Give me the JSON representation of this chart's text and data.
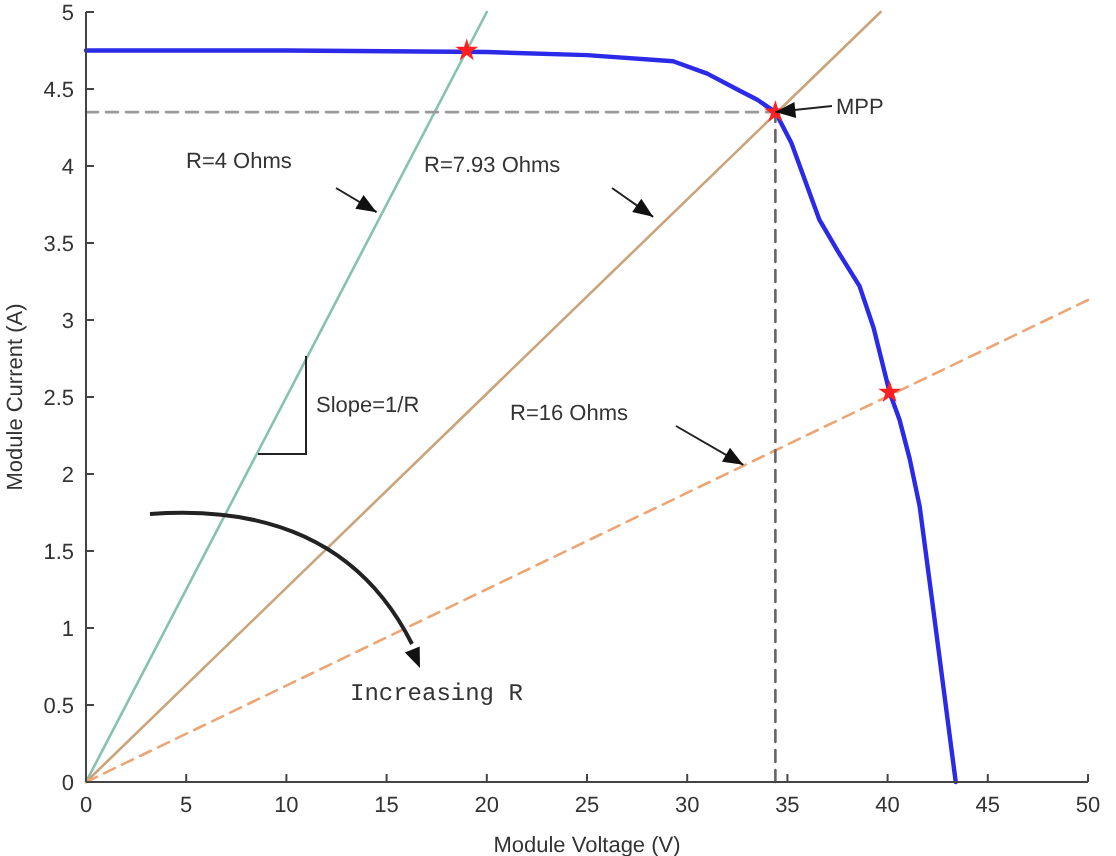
{
  "chart_data": {
    "type": "line",
    "xlabel": "Module Voltage (V)",
    "ylabel": "Module Current (A)",
    "xlim": [
      0,
      50
    ],
    "ylim": [
      0,
      5
    ],
    "xticks": [
      0,
      5,
      10,
      15,
      20,
      25,
      30,
      35,
      40,
      45,
      50
    ],
    "yticks": [
      0,
      0.5,
      1,
      1.5,
      2,
      2.5,
      3,
      3.5,
      4,
      4.5,
      5
    ],
    "series": [
      {
        "color": "#2a2ae8",
        "line_style": "solid",
        "x": [
          0,
          10,
          20,
          25,
          29.3,
          31,
          32.6,
          33.5,
          34.4,
          35.2,
          36.6,
          37.5,
          38.6,
          39.3,
          40.1,
          40.6,
          41.1,
          41.6,
          42.2,
          43.4
        ],
        "values": [
          4.75,
          4.75,
          4.74,
          4.72,
          4.68,
          4.6,
          4.49,
          4.43,
          4.35,
          4.15,
          3.65,
          3.45,
          3.22,
          2.95,
          2.53,
          2.35,
          2.1,
          1.79,
          1.2,
          0
        ]
      },
      {
        "color": "#86c2ad",
        "line_style": "solid",
        "x": [
          0,
          20
        ],
        "values": [
          0,
          5
        ]
      },
      {
        "color": "#c9a47c",
        "line_style": "solid",
        "x": [
          0,
          39.65
        ],
        "values": [
          0,
          5
        ]
      },
      {
        "color": "#eca575",
        "line_style": "dashed",
        "x": [
          0,
          50
        ],
        "values": [
          0,
          3.13
        ]
      },
      {
        "color": "#999999",
        "line_style": "dashed",
        "x": [
          0,
          34.4
        ],
        "values": [
          4.35,
          4.35
        ]
      },
      {
        "color": "#666666",
        "line_style": "dashed",
        "x": [
          34.4,
          34.4
        ],
        "values": [
          0,
          4.35
        ]
      },
      {
        "type": "scatter",
        "color": "#ff2020",
        "marker": "star",
        "x": [
          19,
          34.4,
          40.1
        ],
        "values": [
          4.75,
          4.35,
          2.53
        ]
      }
    ],
    "annotations": [
      "R=4 Ohms",
      "R=7.93 Ohms",
      "R=16 Ohms",
      {
        "text": "MPP",
        "x": 34.4,
        "y": 4.35
      },
      "Slope=1/R",
      "Increasing R"
    ]
  }
}
